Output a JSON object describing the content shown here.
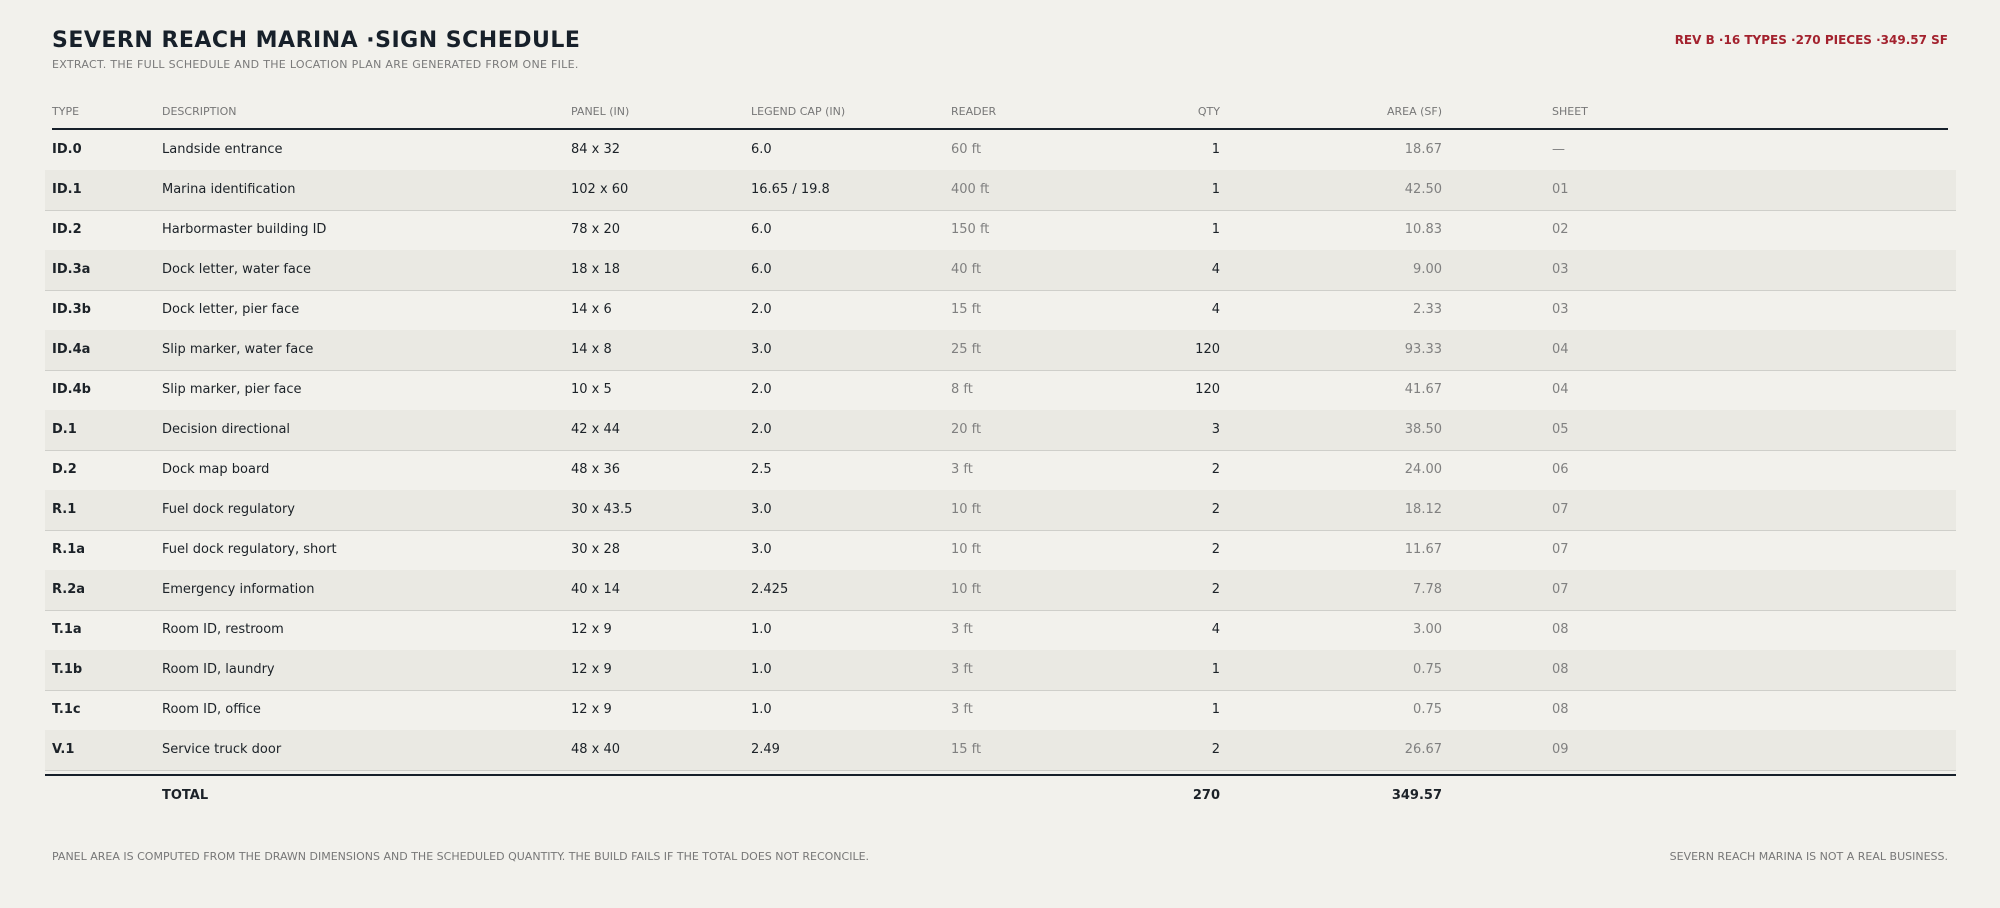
{
  "header": {
    "title": "SEVERN REACH MARINA ·SIGN SCHEDULE",
    "subtitle": "EXTRACT. THE FULL SCHEDULE AND THE LOCATION PLAN ARE GENERATED FROM ONE FILE.",
    "revision": "REV B ·16 TYPES ·270 PIECES ·349.57 SF"
  },
  "table": {
    "columns": [
      "TYPE",
      "DESCRIPTION",
      "PANEL (IN)",
      "LEGEND CAP (IN)",
      "READER",
      "QTY",
      "AREA (SF)",
      "SHEET"
    ],
    "rows": [
      [
        "ID.0",
        "Landside entrance",
        "84 x 32",
        "6.0",
        "60 ft",
        "1",
        "18.67",
        "—"
      ],
      [
        "ID.1",
        "Marina identification",
        "102 x 60",
        "16.65 / 19.8",
        "400 ft",
        "1",
        "42.50",
        "01"
      ],
      [
        "ID.2",
        "Harbormaster building ID",
        "78 x 20",
        "6.0",
        "150 ft",
        "1",
        "10.83",
        "02"
      ],
      [
        "ID.3a",
        "Dock letter, water face",
        "18 x 18",
        "6.0",
        "40 ft",
        "4",
        "9.00",
        "03"
      ],
      [
        "ID.3b",
        "Dock letter, pier face",
        "14 x 6",
        "2.0",
        "15 ft",
        "4",
        "2.33",
        "03"
      ],
      [
        "ID.4a",
        "Slip marker, water face",
        "14 x 8",
        "3.0",
        "25 ft",
        "120",
        "93.33",
        "04"
      ],
      [
        "ID.4b",
        "Slip marker, pier face",
        "10 x 5",
        "2.0",
        "8 ft",
        "120",
        "41.67",
        "04"
      ],
      [
        "D.1",
        "Decision directional",
        "42 x 44",
        "2.0",
        "20 ft",
        "3",
        "38.50",
        "05"
      ],
      [
        "D.2",
        "Dock map board",
        "48 x 36",
        "2.5",
        "3 ft",
        "2",
        "24.00",
        "06"
      ],
      [
        "R.1",
        "Fuel dock regulatory",
        "30 x 43.5",
        "3.0",
        "10 ft",
        "2",
        "18.12",
        "07"
      ],
      [
        "R.1a",
        "Fuel dock regulatory, short",
        "30 x 28",
        "3.0",
        "10 ft",
        "2",
        "11.67",
        "07"
      ],
      [
        "R.2a",
        "Emergency information",
        "40 x 14",
        "2.425",
        "10 ft",
        "2",
        "7.78",
        "07"
      ],
      [
        "T.1a",
        "Room ID, restroom",
        "12 x 9",
        "1.0",
        "3 ft",
        "4",
        "3.00",
        "08"
      ],
      [
        "T.1b",
        "Room ID, laundry",
        "12 x 9",
        "1.0",
        "3 ft",
        "1",
        "0.75",
        "08"
      ],
      [
        "T.1c",
        "Room ID, office",
        "12 x 9",
        "1.0",
        "3 ft",
        "1",
        "0.75",
        "08"
      ],
      [
        "V.1",
        "Service truck door",
        "48 x 40",
        "2.49",
        "15 ft",
        "2",
        "26.67",
        "09"
      ]
    ],
    "total": {
      "label": "TOTAL",
      "qty": "270",
      "area": "349.57"
    }
  },
  "footer": {
    "note": "PANEL AREA IS COMPUTED FROM THE DRAWN DIMENSIONS AND THE SCHEDULED QUANTITY. THE BUILD FAILS IF THE TOTAL DOES NOT RECONCILE.",
    "disclaimer": "SEVERN REACH MARINA IS NOT A REAL BUSINESS."
  }
}
